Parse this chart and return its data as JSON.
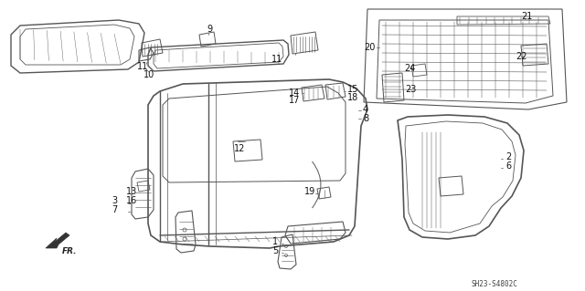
{
  "background_color": "#ffffff",
  "diagram_code": "SH23-S4802C",
  "line_color": "#555555",
  "label_color": "#111111",
  "label_fs": 7.0,
  "lw": 0.7
}
